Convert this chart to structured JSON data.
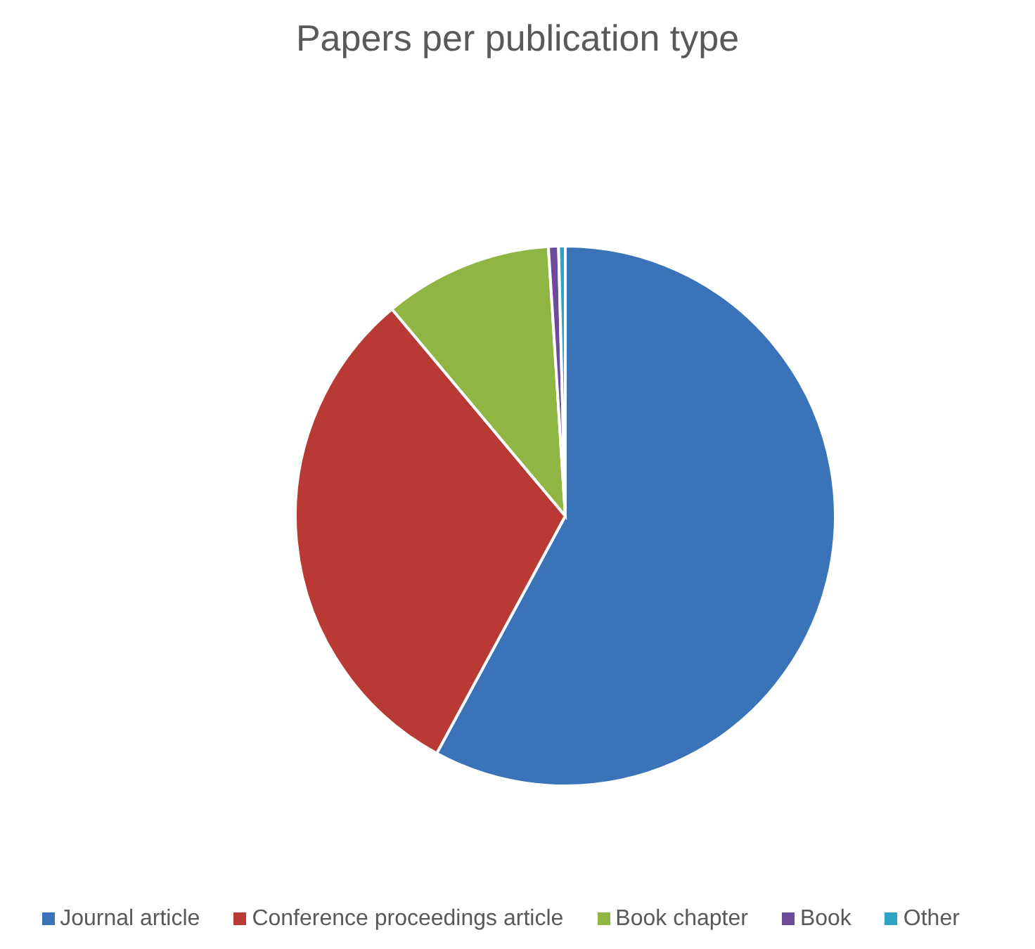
{
  "chart_data": {
    "type": "pie",
    "title": "Papers per publication type",
    "categories": [
      "Journal article",
      "Conference proceedings article",
      "Book chapter",
      "Book",
      "Other"
    ],
    "values": [
      57.9,
      31.0,
      10.1,
      0.6,
      0.4
    ],
    "colors": [
      "#3a73b8",
      "#b93a35",
      "#8fb543",
      "#6b4c9a",
      "#2ea3c4"
    ],
    "legend": "bottom"
  }
}
